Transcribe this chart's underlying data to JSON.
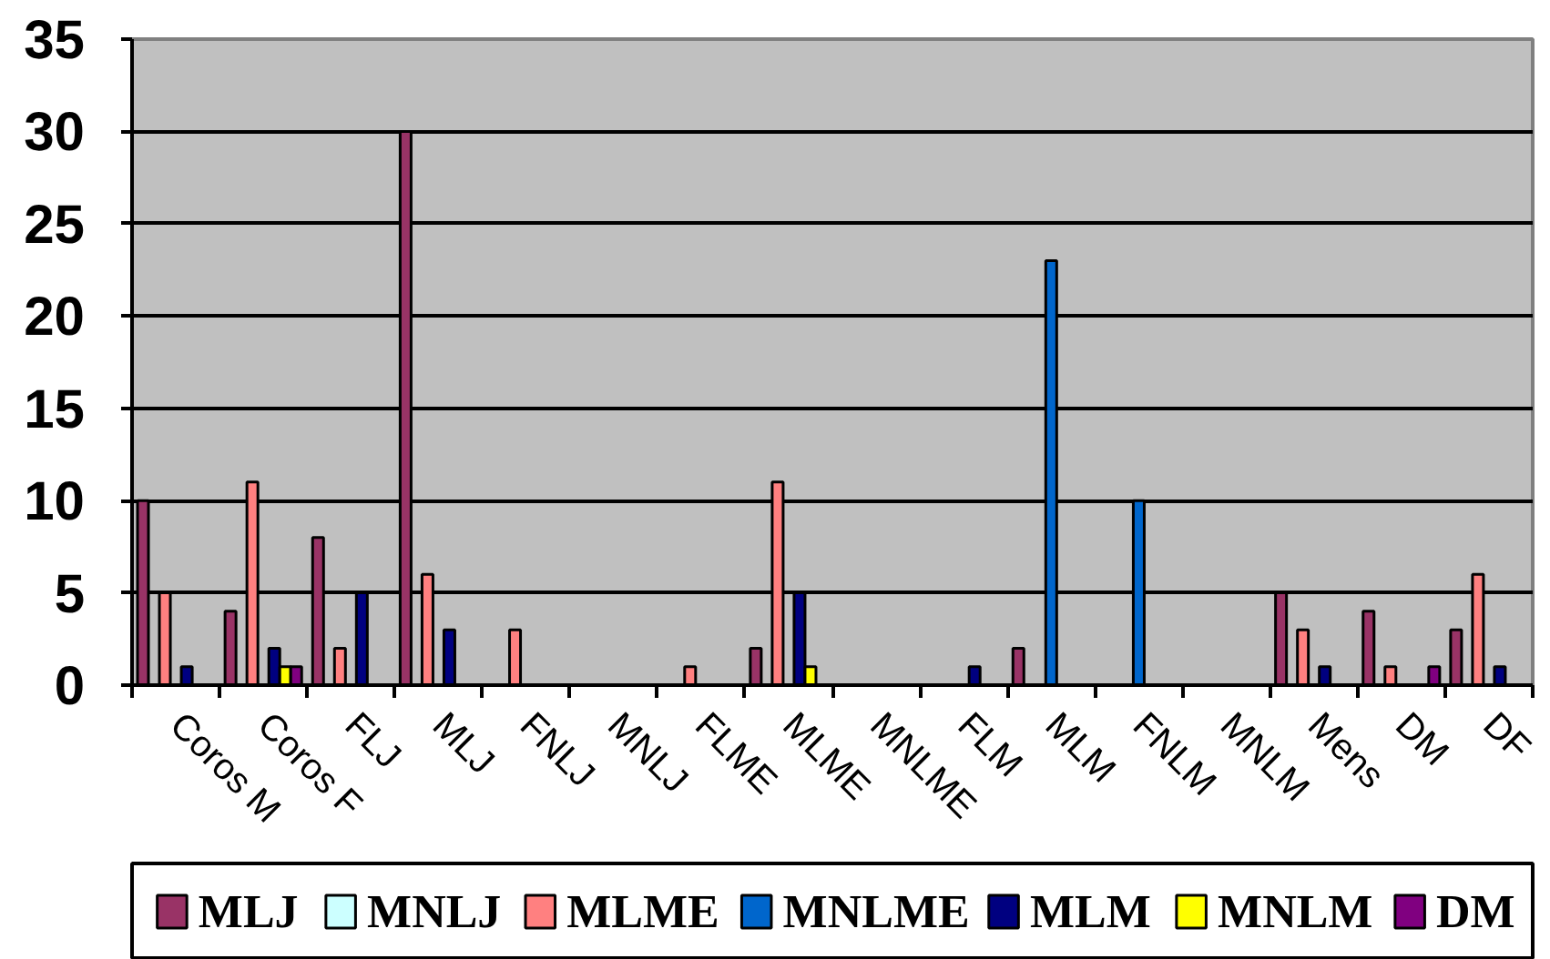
{
  "chart_data": {
    "type": "bar",
    "categories": [
      "Coros M",
      "Coros F",
      "FLJ",
      "MLJ",
      "FNLJ",
      "MNLJ",
      "FLME",
      "MLME",
      "MNLME",
      "FLM",
      "MLM",
      "FNLM",
      "MNLM",
      "Mens",
      "DM",
      "DF"
    ],
    "series": [
      {
        "name": "MLJ",
        "color": "#993366",
        "values": [
          10,
          4,
          8,
          30,
          null,
          null,
          null,
          2,
          null,
          null,
          2,
          null,
          null,
          5,
          4,
          3
        ]
      },
      {
        "name": "MNLJ",
        "color": "#ccffff",
        "values": [
          null,
          null,
          null,
          null,
          null,
          null,
          null,
          null,
          null,
          null,
          null,
          null,
          null,
          null,
          null,
          null
        ]
      },
      {
        "name": "MLME",
        "color": "#ff8080",
        "values": [
          5,
          11,
          2,
          6,
          3,
          null,
          1,
          11,
          null,
          null,
          null,
          null,
          null,
          3,
          1,
          6
        ]
      },
      {
        "name": "MNLME",
        "color": "#0066cc",
        "values": [
          null,
          null,
          null,
          null,
          null,
          null,
          null,
          null,
          null,
          null,
          23,
          10,
          null,
          null,
          null,
          null
        ]
      },
      {
        "name": "MLM",
        "color": "#000080",
        "values": [
          1,
          2,
          5,
          3,
          null,
          null,
          null,
          5,
          null,
          1,
          null,
          null,
          null,
          1,
          null,
          1
        ]
      },
      {
        "name": "MNLM",
        "color": "#ffff00",
        "values": [
          null,
          1,
          null,
          null,
          null,
          null,
          null,
          1,
          null,
          null,
          null,
          null,
          null,
          null,
          null,
          null
        ]
      },
      {
        "name": "DM",
        "color": "#800080",
        "values": [
          null,
          1,
          null,
          null,
          null,
          null,
          null,
          null,
          null,
          null,
          null,
          null,
          null,
          null,
          1,
          null
        ]
      }
    ],
    "ylim": [
      0,
      35
    ],
    "yticks": [
      0,
      5,
      10,
      15,
      20,
      25,
      30,
      35
    ],
    "grid": "y",
    "legend": "bottom"
  }
}
